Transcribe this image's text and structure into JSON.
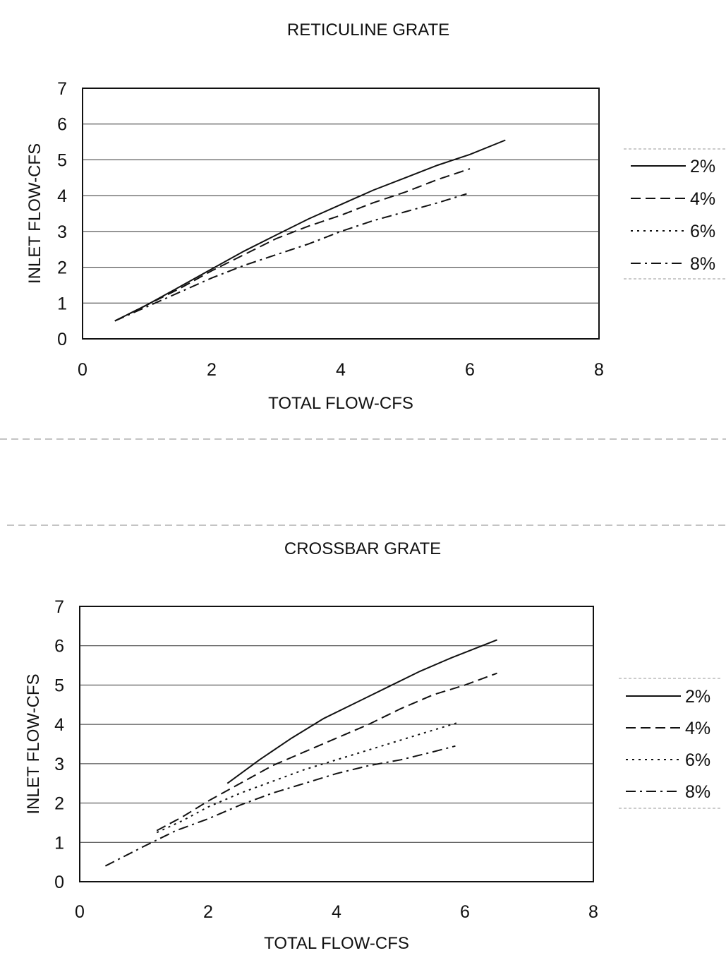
{
  "chart_data": [
    {
      "type": "line",
      "title": "RETICULINE GRATE",
      "xlabel": "TOTAL FLOW-CFS",
      "ylabel": "INLET FLOW-CFS",
      "xlim": [
        0,
        8
      ],
      "ylim": [
        0,
        7
      ],
      "x_ticks": [
        "0",
        "2",
        "4",
        "6",
        "8"
      ],
      "y_ticks": [
        "0",
        "1",
        "2",
        "3",
        "4",
        "5",
        "6",
        "7"
      ],
      "grid": "horizontal",
      "legend": "right",
      "series": [
        {
          "name": "2%",
          "dash": "solid",
          "x": [
            0.5,
            1.0,
            1.5,
            2.0,
            2.5,
            3.0,
            3.5,
            4.0,
            4.5,
            5.0,
            5.5,
            6.0,
            6.55
          ],
          "y": [
            0.5,
            0.95,
            1.45,
            1.95,
            2.45,
            2.9,
            3.35,
            3.75,
            4.15,
            4.5,
            4.85,
            5.15,
            5.55
          ]
        },
        {
          "name": "4%",
          "dash": "dashed",
          "x": [
            0.5,
            1.0,
            1.5,
            2.0,
            2.5,
            3.0,
            3.5,
            4.0,
            4.5,
            5.0,
            5.5,
            6.0
          ],
          "y": [
            0.5,
            0.95,
            1.4,
            1.9,
            2.35,
            2.8,
            3.15,
            3.45,
            3.8,
            4.1,
            4.45,
            4.75
          ]
        },
        {
          "name": "6%",
          "dash": "dotted",
          "x": [],
          "y": []
        },
        {
          "name": "8%",
          "dash": "dash-dot",
          "x": [
            0.5,
            1.0,
            1.5,
            2.0,
            2.5,
            3.0,
            3.5,
            4.0,
            4.5,
            5.0,
            5.5,
            5.95
          ],
          "y": [
            0.5,
            0.9,
            1.3,
            1.7,
            2.05,
            2.35,
            2.65,
            3.0,
            3.3,
            3.55,
            3.8,
            4.05
          ]
        }
      ]
    },
    {
      "type": "line",
      "title": "CROSSBAR GRATE",
      "xlabel": "TOTAL FLOW-CFS",
      "ylabel": "INLET FLOW-CFS",
      "xlim": [
        0,
        8
      ],
      "ylim": [
        0,
        7
      ],
      "x_ticks": [
        "0",
        "2",
        "4",
        "6",
        "8"
      ],
      "y_ticks": [
        "0",
        "1",
        "2",
        "3",
        "4",
        "5",
        "6",
        "7"
      ],
      "grid": "horizontal",
      "legend": "right",
      "series": [
        {
          "name": "2%",
          "dash": "solid",
          "x": [
            2.3,
            2.8,
            3.3,
            3.8,
            4.3,
            4.8,
            5.3,
            5.8,
            6.5
          ],
          "y": [
            2.5,
            3.1,
            3.65,
            4.15,
            4.55,
            4.95,
            5.35,
            5.7,
            6.15
          ]
        },
        {
          "name": "4%",
          "dash": "dashed",
          "x": [
            1.2,
            1.6,
            2.0,
            2.5,
            3.0,
            3.5,
            4.0,
            4.5,
            5.0,
            5.5,
            6.0,
            6.5
          ],
          "y": [
            1.3,
            1.65,
            2.05,
            2.5,
            2.95,
            3.3,
            3.65,
            4.0,
            4.4,
            4.75,
            5.0,
            5.3
          ]
        },
        {
          "name": "6%",
          "dash": "dotted",
          "x": [
            1.2,
            1.6,
            2.0,
            2.5,
            3.0,
            3.5,
            4.0,
            4.5,
            5.0,
            5.5,
            5.9
          ],
          "y": [
            1.25,
            1.55,
            1.9,
            2.25,
            2.55,
            2.85,
            3.1,
            3.35,
            3.6,
            3.85,
            4.05
          ]
        },
        {
          "name": "8%",
          "dash": "dash-dot",
          "x": [
            0.4,
            1.0,
            1.5,
            2.0,
            2.5,
            3.0,
            3.5,
            4.0,
            4.5,
            5.0,
            5.5,
            5.85
          ],
          "y": [
            0.4,
            0.9,
            1.3,
            1.6,
            1.95,
            2.25,
            2.5,
            2.75,
            2.95,
            3.1,
            3.3,
            3.45
          ]
        }
      ]
    }
  ]
}
